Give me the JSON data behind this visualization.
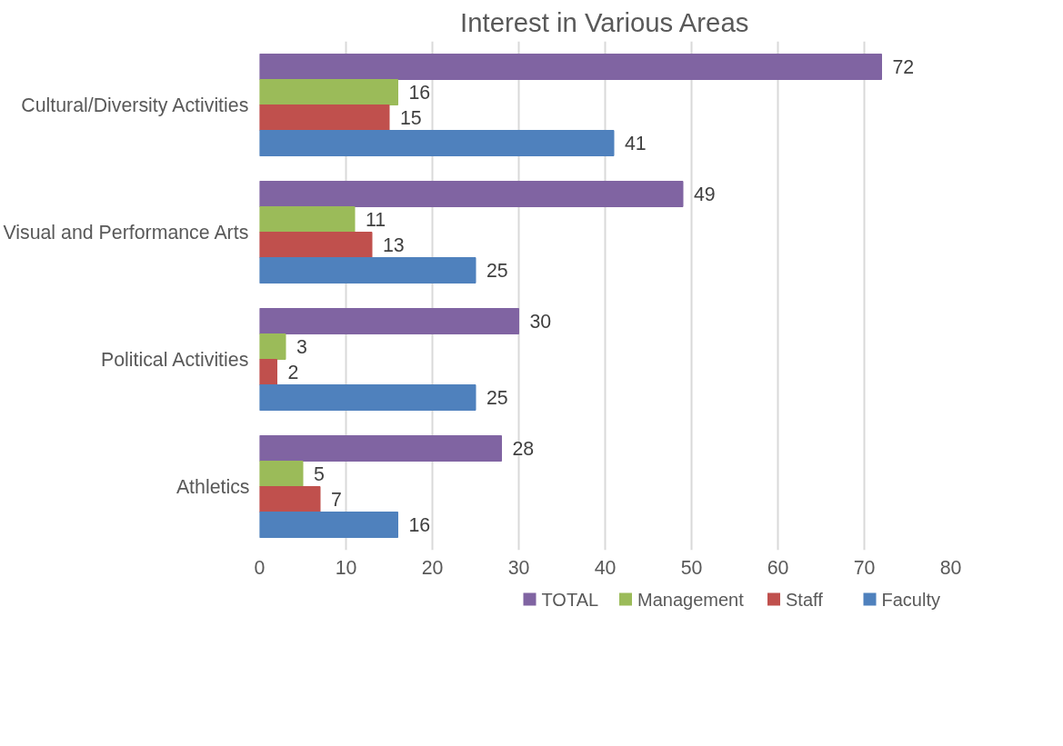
{
  "chart_data": {
    "type": "bar",
    "orientation": "horizontal",
    "title": "Interest in Various Areas",
    "categories": [
      "Cultural/Diversity Activities",
      "Visual and Performance Arts",
      "Political Activities",
      "Athletics"
    ],
    "series": [
      {
        "name": "TOTAL",
        "color": "#8064a2",
        "values": [
          72,
          49,
          30,
          28
        ]
      },
      {
        "name": "Management",
        "color": "#9bbb59",
        "values": [
          16,
          11,
          3,
          5
        ]
      },
      {
        "name": "Staff",
        "color": "#c0504d",
        "values": [
          15,
          13,
          2,
          7
        ]
      },
      {
        "name": "Faculty",
        "color": "#4f81bd",
        "values": [
          41,
          25,
          25,
          16
        ]
      }
    ],
    "xlim": [
      0,
      80
    ],
    "xticks": [
      0,
      10,
      20,
      30,
      40,
      50,
      60,
      70,
      80
    ],
    "grid": "x",
    "legend": "bottom",
    "data_labels": true
  }
}
